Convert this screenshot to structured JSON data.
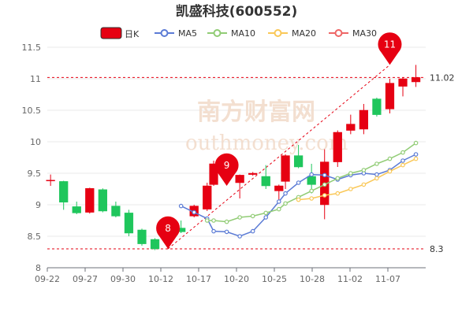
{
  "chart_data": {
    "type": "candlestick",
    "title": "凯盛科技(600552)",
    "ylim": [
      8,
      11.5
    ],
    "y_ticks": [
      "11.5",
      "11",
      "10.5",
      "10",
      "9.5",
      "9",
      "8.5",
      "8"
    ],
    "x_tick_labels": [
      "09-22",
      "09-27",
      "09-30",
      "10-12",
      "10-17",
      "10-20",
      "10-25",
      "10-28",
      "11-02",
      "11-07"
    ],
    "x_tick_index": [
      0,
      4,
      8,
      12,
      16,
      20,
      24,
      28,
      32,
      36
    ],
    "legend": [
      {
        "label": "日K",
        "color": "#e60012",
        "type": "box"
      },
      {
        "label": "MA5",
        "color": "#5b7bd5",
        "type": "line"
      },
      {
        "label": "MA10",
        "color": "#91cc75",
        "type": "line"
      },
      {
        "label": "MA20",
        "color": "#fac858",
        "type": "line"
      },
      {
        "label": "MA30",
        "color": "#ee6666",
        "type": "line"
      }
    ],
    "up_color": "#e60012",
    "down_color": "#1fc65c",
    "candles": [
      {
        "o": 9.38,
        "c": 9.39,
        "l": 9.3,
        "h": 9.48
      },
      {
        "o": 9.37,
        "c": 9.04,
        "l": 8.92,
        "h": 9.38
      },
      {
        "o": 8.97,
        "c": 8.87,
        "l": 8.85,
        "h": 9.05
      },
      {
        "o": 8.88,
        "c": 9.26,
        "l": 8.86,
        "h": 9.27
      },
      {
        "o": 9.24,
        "c": 8.9,
        "l": 8.88,
        "h": 9.26
      },
      {
        "o": 8.98,
        "c": 8.82,
        "l": 8.8,
        "h": 9.05
      },
      {
        "o": 8.87,
        "c": 8.55,
        "l": 8.5,
        "h": 8.92
      },
      {
        "o": 8.6,
        "c": 8.38,
        "l": 8.35,
        "h": 8.62
      },
      {
        "o": 8.45,
        "c": 8.3,
        "l": 8.28,
        "h": 8.47
      },
      {
        "o": 8.5,
        "c": 8.73,
        "l": 8.3,
        "h": 8.8
      },
      {
        "o": 8.63,
        "c": 8.57,
        "l": 8.55,
        "h": 8.75
      },
      {
        "o": 8.82,
        "c": 8.98,
        "l": 8.8,
        "h": 9.0
      },
      {
        "o": 8.93,
        "c": 9.3,
        "l": 8.9,
        "h": 9.35
      },
      {
        "o": 9.32,
        "c": 9.65,
        "l": 9.3,
        "h": 9.7
      },
      {
        "o": 9.6,
        "c": 9.42,
        "l": 9.4,
        "h": 9.63
      },
      {
        "o": 9.35,
        "c": 9.47,
        "l": 9.1,
        "h": 9.48
      },
      {
        "o": 9.48,
        "c": 9.5,
        "l": 9.46,
        "h": 9.52
      },
      {
        "o": 9.45,
        "c": 9.3,
        "l": 9.25,
        "h": 9.63
      },
      {
        "o": 9.22,
        "c": 9.3,
        "l": 9.06,
        "h": 9.32
      },
      {
        "o": 9.37,
        "c": 9.78,
        "l": 9.25,
        "h": 9.8
      },
      {
        "o": 9.78,
        "c": 9.6,
        "l": 9.58,
        "h": 9.95
      },
      {
        "o": 9.45,
        "c": 9.32,
        "l": 9.18,
        "h": 9.65
      },
      {
        "o": 9.0,
        "c": 9.68,
        "l": 8.77,
        "h": 9.88
      },
      {
        "o": 9.68,
        "c": 10.15,
        "l": 9.6,
        "h": 10.18
      },
      {
        "o": 10.18,
        "c": 10.28,
        "l": 10.12,
        "h": 10.43
      },
      {
        "o": 10.2,
        "c": 10.5,
        "l": 10.12,
        "h": 10.6
      },
      {
        "o": 10.68,
        "c": 10.43,
        "l": 10.4,
        "h": 10.7
      },
      {
        "o": 10.52,
        "c": 10.93,
        "l": 10.45,
        "h": 11.0
      },
      {
        "o": 10.88,
        "c": 11.0,
        "l": 10.72,
        "h": 11.02
      },
      {
        "o": 10.95,
        "c": 11.02,
        "l": 10.87,
        "h": 11.22
      }
    ],
    "candle_index": [
      0,
      2,
      4,
      6,
      8,
      10,
      12,
      14,
      16,
      18,
      20,
      22,
      24,
      25,
      27,
      29,
      31,
      33,
      35,
      36,
      38,
      40,
      42,
      44,
      46,
      48,
      50,
      52,
      54,
      56
    ],
    "ma": {
      "MA5": {
        "index": [
          20,
          22,
          24,
          25,
          27,
          29,
          31,
          33,
          35,
          36,
          38,
          40,
          42,
          44,
          46,
          48,
          50,
          52,
          54,
          56
        ],
        "values": [
          8.98,
          8.88,
          8.78,
          8.58,
          8.57,
          8.5,
          8.58,
          8.8,
          9.05,
          9.18,
          9.35,
          9.48,
          9.47,
          9.4,
          9.47,
          9.5,
          9.48,
          9.55,
          9.7,
          9.8
        ]
      },
      "MA10": {
        "index": [
          24,
          25,
          27,
          29,
          31,
          33,
          35,
          36,
          38,
          40,
          42,
          44,
          46,
          48,
          50,
          52,
          54,
          56
        ],
        "values": [
          8.75,
          8.75,
          8.73,
          8.8,
          8.82,
          8.87,
          8.93,
          9.02,
          9.12,
          9.22,
          9.32,
          9.42,
          9.5,
          9.55,
          9.65,
          9.73,
          9.83,
          9.98
        ]
      },
      "MA20": {
        "index": [
          38,
          40,
          42,
          44,
          46,
          48,
          50,
          52,
          54,
          56
        ],
        "values": [
          9.08,
          9.1,
          9.15,
          9.18,
          9.25,
          9.32,
          9.42,
          9.53,
          9.63,
          9.73
        ]
      },
      "MA30": {
        "index": [],
        "values": []
      }
    },
    "reference_lines": [
      {
        "label": "11.02",
        "value": 11.02
      },
      {
        "label": "8.3",
        "value": 8.3
      }
    ],
    "markers": [
      {
        "label": "8",
        "value": 8.3,
        "index": 18
      },
      {
        "label": "9",
        "value": 9.3,
        "index": 27
      },
      {
        "label": "11",
        "value": 11.22,
        "index": 52
      }
    ],
    "x_count": 58
  },
  "watermark": "南方财富网",
  "watermark_sub": "outhmoney.com"
}
